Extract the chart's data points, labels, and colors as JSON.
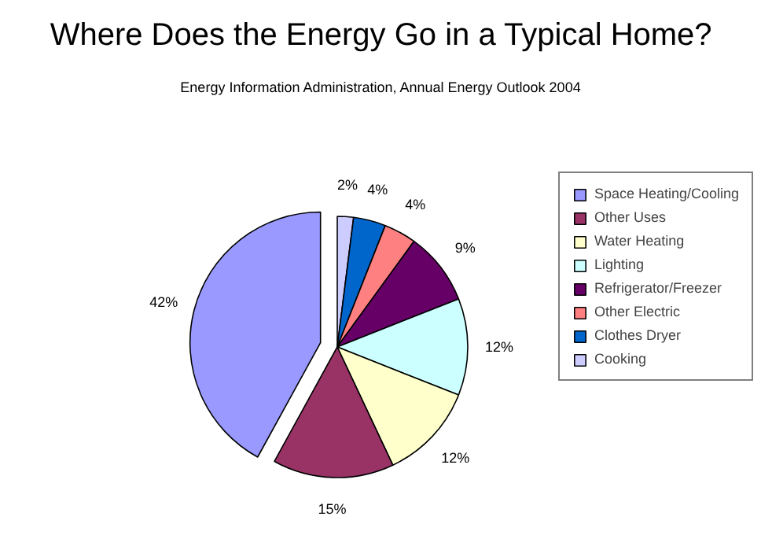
{
  "chart_data": {
    "type": "pie",
    "title": "Where Does the Energy Go in a Typical Home?",
    "subtitle": "Energy Information Administration, Annual Energy Outlook 2004",
    "categories": [
      "Space Heating/Cooling",
      "Other Uses",
      "Water Heating",
      "Lighting",
      "Refrigerator/Freezer",
      "Other Electric",
      "Clothes Dryer",
      "Cooking"
    ],
    "values": [
      42,
      15,
      12,
      12,
      9,
      4,
      4,
      2
    ],
    "colors": [
      "#9999ff",
      "#993366",
      "#ffffcc",
      "#ccffff",
      "#660066",
      "#ff8080",
      "#0066cc",
      "#ccccff"
    ],
    "value_labels": [
      "42%",
      "15%",
      "12%",
      "12%",
      "9%",
      "4%",
      "4%",
      "2%"
    ],
    "legend": "right"
  }
}
